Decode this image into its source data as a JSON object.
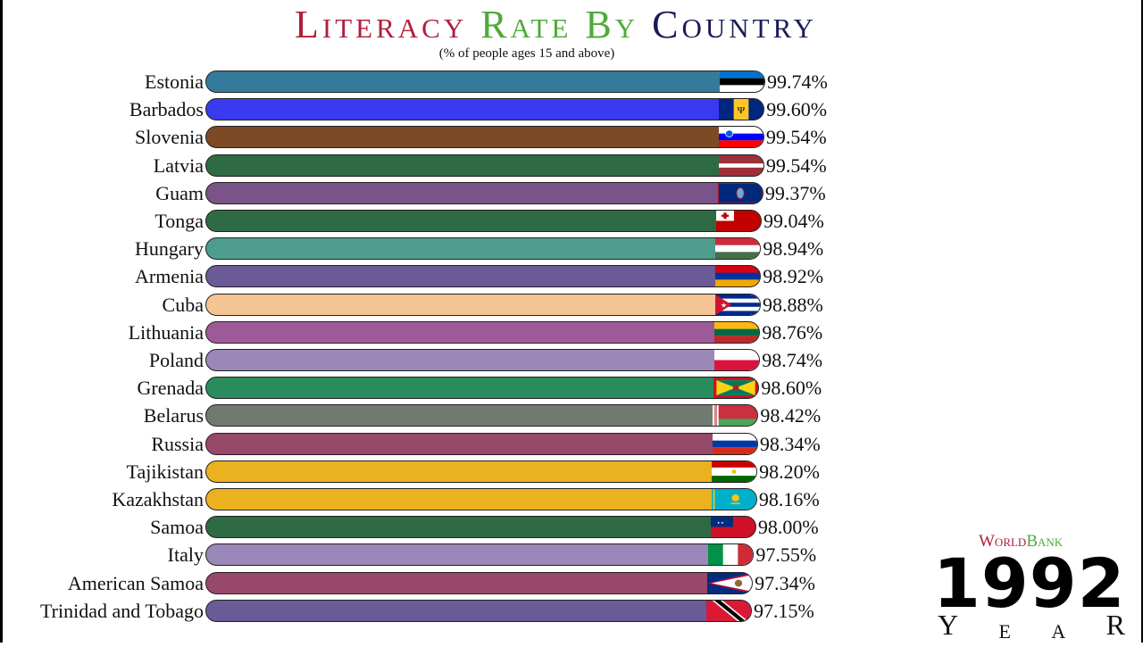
{
  "header": {
    "title_part1": "Literacy ",
    "title_part2": "Rate By ",
    "title_part3": "Country",
    "subtitle": "(% of people ages 15 and above)"
  },
  "source": {
    "part1": "World",
    "part2": "Bank"
  },
  "year": {
    "value": "1992",
    "letters": [
      "Y",
      "E",
      "A",
      "R"
    ]
  },
  "rows": [
    {
      "country": "Estonia",
      "value": "99.74%",
      "color": "#347a9b",
      "flag": "estonia"
    },
    {
      "country": "Barbados",
      "value": "99.60%",
      "color": "#3a3af0",
      "flag": "barbados"
    },
    {
      "country": "Slovenia",
      "value": "99.54%",
      "color": "#7e4a25",
      "flag": "slovenia"
    },
    {
      "country": "Latvia",
      "value": "99.54%",
      "color": "#2e6a44",
      "flag": "latvia"
    },
    {
      "country": "Guam",
      "value": "99.37%",
      "color": "#7a5488",
      "flag": "guam"
    },
    {
      "country": "Tonga",
      "value": "99.04%",
      "color": "#2e6a44",
      "flag": "tonga"
    },
    {
      "country": "Hungary",
      "value": "98.94%",
      "color": "#4d9c8c",
      "flag": "hungary"
    },
    {
      "country": "Armenia",
      "value": "98.92%",
      "color": "#6a5a98",
      "flag": "armenia"
    },
    {
      "country": "Cuba",
      "value": "98.88%",
      "color": "#f4c495",
      "flag": "cuba"
    },
    {
      "country": "Lithuania",
      "value": "98.76%",
      "color": "#9e5a98",
      "flag": "lithuania"
    },
    {
      "country": "Poland",
      "value": "98.74%",
      "color": "#9a88b8",
      "flag": "poland"
    },
    {
      "country": "Grenada",
      "value": "98.60%",
      "color": "#2a8c5c",
      "flag": "grenada"
    },
    {
      "country": "Belarus",
      "value": "98.42%",
      "color": "#707a70",
      "flag": "belarus"
    },
    {
      "country": "Russia",
      "value": "98.34%",
      "color": "#984868",
      "flag": "russia"
    },
    {
      "country": "Tajikistan",
      "value": "98.20%",
      "color": "#eab21e",
      "flag": "tajikistan"
    },
    {
      "country": "Kazakhstan",
      "value": "98.16%",
      "color": "#eab21e",
      "flag": "kazakhstan"
    },
    {
      "country": "Samoa",
      "value": "98.00%",
      "color": "#2e6a44",
      "flag": "samoa"
    },
    {
      "country": "Italy",
      "value": "97.55%",
      "color": "#9a88b8",
      "flag": "italy"
    },
    {
      "country": "American Samoa",
      "value": "97.34%",
      "color": "#984868",
      "flag": "american-samoa"
    },
    {
      "country": "Trinidad and Tobago",
      "value": "97.15%",
      "color": "#6a5a98",
      "flag": "trinidad-and-tobago"
    }
  ],
  "chart_data": {
    "type": "bar",
    "orientation": "horizontal",
    "title": "Literacy Rate By Country",
    "subtitle": "(% of people ages 15 and above)",
    "annotation": "Year 1992, WorldBank",
    "xlabel": "",
    "ylabel": "",
    "categories": [
      "Estonia",
      "Barbados",
      "Slovenia",
      "Latvia",
      "Guam",
      "Tonga",
      "Hungary",
      "Armenia",
      "Cuba",
      "Lithuania",
      "Poland",
      "Grenada",
      "Belarus",
      "Russia",
      "Tajikistan",
      "Kazakhstan",
      "Samoa",
      "Italy",
      "American Samoa",
      "Trinidad and Tobago"
    ],
    "values": [
      99.74,
      99.6,
      99.54,
      99.54,
      99.37,
      99.04,
      98.94,
      98.92,
      98.88,
      98.76,
      98.74,
      98.6,
      98.42,
      98.34,
      98.2,
      98.16,
      98.0,
      97.55,
      97.34,
      97.15
    ],
    "grid": false,
    "legend": "none"
  }
}
